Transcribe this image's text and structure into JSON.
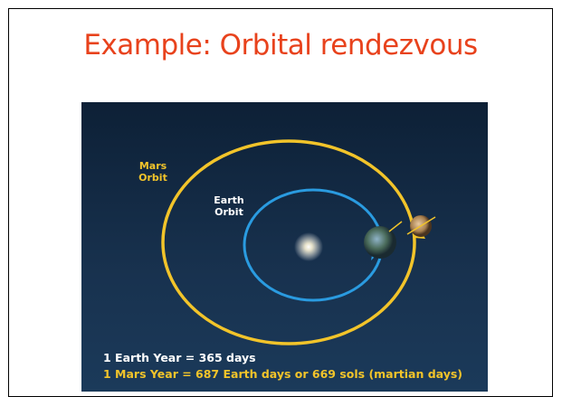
{
  "slide": {
    "title": "Example: Orbital rendezvous",
    "image": {
      "mars_orbit_label": [
        "Mars",
        "Orbit"
      ],
      "earth_orbit_label": [
        "Earth",
        "Orbit"
      ],
      "caption": [
        "1 Earth Year = 365 days",
        "1 Mars Year = 687 Earth days or 669 sols (martian days)"
      ]
    }
  }
}
